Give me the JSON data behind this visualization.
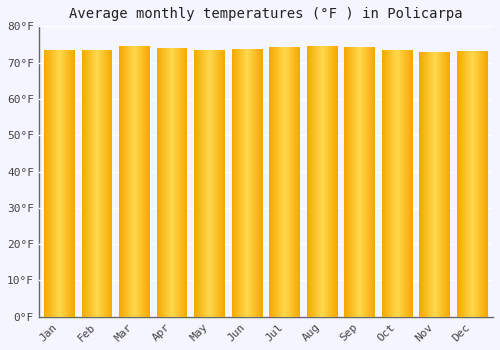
{
  "title": "Average monthly temperatures (°F ) in Policarpa",
  "categories": [
    "Jan",
    "Feb",
    "Mar",
    "Apr",
    "May",
    "Jun",
    "Jul",
    "Aug",
    "Sep",
    "Oct",
    "Nov",
    "Dec"
  ],
  "values": [
    73.4,
    73.6,
    74.5,
    74.1,
    73.6,
    73.8,
    74.3,
    74.7,
    74.3,
    73.6,
    72.9,
    73.2
  ],
  "bar_color_edge": "#F5A800",
  "bar_color_center": "#FFD84D",
  "bar_color_top_edge": "#E09000",
  "ylim": [
    0,
    80
  ],
  "yticks": [
    0,
    10,
    20,
    30,
    40,
    50,
    60,
    70,
    80
  ],
  "ytick_labels": [
    "0°F",
    "10°F",
    "20°F",
    "30°F",
    "40°F",
    "50°F",
    "60°F",
    "70°F",
    "80°F"
  ],
  "background_color": "#f5f5ff",
  "plot_bg_color": "#f5f5ff",
  "grid_color": "#ddddee",
  "title_fontsize": 10,
  "tick_fontsize": 8,
  "font_family": "monospace"
}
